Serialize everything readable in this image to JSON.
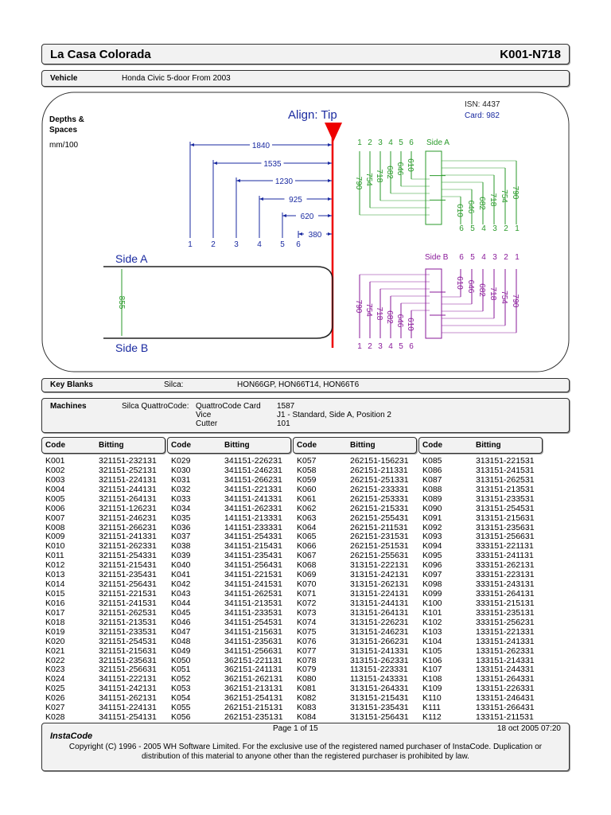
{
  "header": {
    "title": "La Casa Colorada",
    "code": "K001-N718"
  },
  "vehicle": {
    "label": "Vehicle",
    "value": "Honda Civic 5-door From 2003"
  },
  "diagram": {
    "heading": [
      "Depths &",
      "Spaces"
    ],
    "units": "mm/100",
    "align": "Align: Tip",
    "isn": "ISN: 4437",
    "card": "Card: 982",
    "spaces": [
      "1840",
      "1535",
      "1230",
      "925",
      "620",
      "380"
    ],
    "positions": [
      "1",
      "2",
      "3",
      "4",
      "5",
      "6"
    ],
    "side_a": "Side A",
    "side_b": "Side B",
    "width": "855",
    "depths": [
      "790",
      "754",
      "718",
      "682",
      "646",
      "610"
    ]
  },
  "key_blanks": {
    "label": "Key Blanks",
    "brand": "Silca:",
    "value": "HON66GP, HON66T14, HON66T6"
  },
  "machines": {
    "label": "Machines",
    "brand": "Silca QuattroCode:",
    "rows": [
      [
        "QuattroCode Card",
        "1587"
      ],
      [
        "Vice",
        "J1 - Standard,  Side A,  Position 2"
      ],
      [
        "Cutter",
        "101"
      ]
    ]
  },
  "table": {
    "headers": [
      "Code",
      "Bitting"
    ],
    "columns": [
      [
        [
          "K001",
          "321151-232131"
        ],
        [
          "K002",
          "321151-252131"
        ],
        [
          "K003",
          "321151-224131"
        ],
        [
          "K004",
          "321151-244131"
        ],
        [
          "K005",
          "321151-264131"
        ],
        [
          "K006",
          "321151-126231"
        ],
        [
          "K007",
          "321151-246231"
        ],
        [
          "K008",
          "321151-266231"
        ],
        [
          "K009",
          "321151-241331"
        ],
        [
          "K010",
          "321151-262331"
        ],
        [
          "K011",
          "321151-254331"
        ],
        [
          "K012",
          "321151-215431"
        ],
        [
          "K013",
          "321151-235431"
        ],
        [
          "K014",
          "321151-256431"
        ],
        [
          "K015",
          "321151-221531"
        ],
        [
          "K016",
          "321151-241531"
        ],
        [
          "K017",
          "321151-262531"
        ],
        [
          "K018",
          "321151-213531"
        ],
        [
          "K019",
          "321151-233531"
        ],
        [
          "K020",
          "321151-254531"
        ],
        [
          "K021",
          "321151-215631"
        ],
        [
          "K022",
          "321151-235631"
        ],
        [
          "K023",
          "321151-256631"
        ],
        [
          "K024",
          "341151-222131"
        ],
        [
          "K025",
          "341151-242131"
        ],
        [
          "K026",
          "341151-262131"
        ],
        [
          "K027",
          "341151-224131"
        ],
        [
          "K028",
          "341151-254131"
        ]
      ],
      [
        [
          "K029",
          "341151-226231"
        ],
        [
          "K030",
          "341151-246231"
        ],
        [
          "K031",
          "341151-266231"
        ],
        [
          "K032",
          "341151-221331"
        ],
        [
          "K033",
          "341151-241331"
        ],
        [
          "K034",
          "341151-262331"
        ],
        [
          "K035",
          "141151-213331"
        ],
        [
          "K036",
          "141151-233331"
        ],
        [
          "K037",
          "341151-254331"
        ],
        [
          "K038",
          "341151-215431"
        ],
        [
          "K039",
          "341151-235431"
        ],
        [
          "K040",
          "341151-256431"
        ],
        [
          "K041",
          "341151-221531"
        ],
        [
          "K042",
          "341151-241531"
        ],
        [
          "K043",
          "341151-262531"
        ],
        [
          "K044",
          "341151-213531"
        ],
        [
          "K045",
          "341151-233531"
        ],
        [
          "K046",
          "341151-254531"
        ],
        [
          "K047",
          "341151-215631"
        ],
        [
          "K048",
          "341151-235631"
        ],
        [
          "K049",
          "341151-256631"
        ],
        [
          "K050",
          "362151-221131"
        ],
        [
          "K051",
          "362151-241131"
        ],
        [
          "K052",
          "362151-262131"
        ],
        [
          "K053",
          "362151-213131"
        ],
        [
          "K054",
          "362151-254131"
        ],
        [
          "K055",
          "262151-215131"
        ],
        [
          "K056",
          "262151-235131"
        ]
      ],
      [
        [
          "K057",
          "262151-156231"
        ],
        [
          "K058",
          "262151-211331"
        ],
        [
          "K059",
          "262151-251331"
        ],
        [
          "K060",
          "262151-233331"
        ],
        [
          "K061",
          "262151-253331"
        ],
        [
          "K062",
          "262151-215331"
        ],
        [
          "K063",
          "262151-255431"
        ],
        [
          "K064",
          "262151-211531"
        ],
        [
          "K065",
          "262151-231531"
        ],
        [
          "K066",
          "262151-251531"
        ],
        [
          "K067",
          "262151-255631"
        ],
        [
          "K068",
          "313151-222131"
        ],
        [
          "K069",
          "313151-242131"
        ],
        [
          "K070",
          "313151-262131"
        ],
        [
          "K071",
          "313151-224131"
        ],
        [
          "K072",
          "313151-244131"
        ],
        [
          "K073",
          "313151-264131"
        ],
        [
          "K074",
          "313151-226231"
        ],
        [
          "K075",
          "313151-246231"
        ],
        [
          "K076",
          "313151-266231"
        ],
        [
          "K077",
          "313151-241331"
        ],
        [
          "K078",
          "313151-262331"
        ],
        [
          "K079",
          "113151-223331"
        ],
        [
          "K080",
          "113151-243331"
        ],
        [
          "K081",
          "313151-264331"
        ],
        [
          "K082",
          "313151-215431"
        ],
        [
          "K083",
          "313151-235431"
        ],
        [
          "K084",
          "313151-256431"
        ]
      ],
      [
        [
          "K085",
          "313151-221531"
        ],
        [
          "K086",
          "313151-241531"
        ],
        [
          "K087",
          "313151-262531"
        ],
        [
          "K088",
          "313151-213531"
        ],
        [
          "K089",
          "313151-233531"
        ],
        [
          "K090",
          "313151-254531"
        ],
        [
          "K091",
          "313151-215631"
        ],
        [
          "K092",
          "313151-235631"
        ],
        [
          "K093",
          "313151-256631"
        ],
        [
          "K094",
          "333151-221131"
        ],
        [
          "K095",
          "333151-241131"
        ],
        [
          "K096",
          "333151-262131"
        ],
        [
          "K097",
          "333151-223131"
        ],
        [
          "K098",
          "333151-243131"
        ],
        [
          "K099",
          "333151-264131"
        ],
        [
          "K100",
          "333151-215131"
        ],
        [
          "K101",
          "333151-235131"
        ],
        [
          "K102",
          "333151-256231"
        ],
        [
          "K103",
          "133151-221331"
        ],
        [
          "K104",
          "133151-241331"
        ],
        [
          "K105",
          "133151-262331"
        ],
        [
          "K106",
          "133151-214331"
        ],
        [
          "K107",
          "133151-244331"
        ],
        [
          "K108",
          "133151-264331"
        ],
        [
          "K109",
          "133151-226331"
        ],
        [
          "K110",
          "133151-246431"
        ],
        [
          "K111",
          "133151-266431"
        ],
        [
          "K112",
          "133151-211531"
        ]
      ]
    ]
  },
  "footer": {
    "brand": "InstaCode",
    "page": "Page 1 of 15",
    "date": "18 oct 2005 07:20",
    "copyright": [
      "Copyright (C) 1996 - 2005 WH Software Limited.  For the exclusive use of the registered named purchaser of InstaCode.  Duplication or",
      "distribution of this material to anyone other than the registered purchaser is prohibited by law."
    ]
  }
}
